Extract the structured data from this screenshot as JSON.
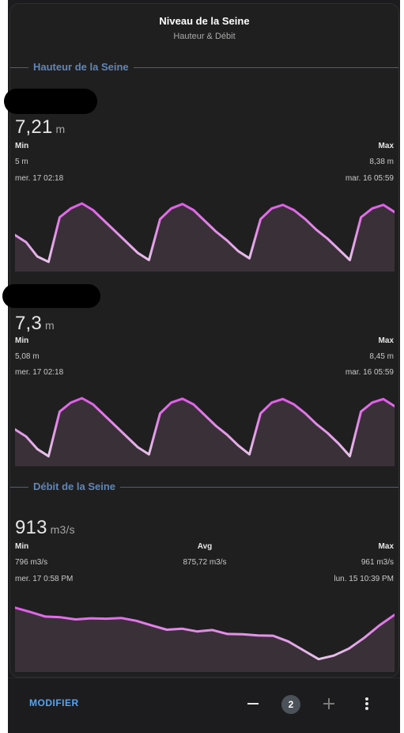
{
  "card": {
    "title": "Niveau de la Seine",
    "subtitle": "Hauteur & Débit"
  },
  "sections": {
    "hauteur_label": "Hauteur de la Seine",
    "debit_label": "Débit de la Seine"
  },
  "sensor1": {
    "value": "7,21",
    "unit": "m",
    "min_label": "Min",
    "max_label": "Max",
    "min_value": "5 m",
    "max_value": "8,38 m",
    "min_time": "mer. 17 02:18",
    "max_time": "mar. 16 05:59"
  },
  "sensor2": {
    "value": "7,3",
    "unit": "m",
    "min_label": "Min",
    "max_label": "Max",
    "min_value": "5,08 m",
    "max_value": "8,45 m",
    "min_time": "mer. 17 02:18",
    "max_time": "mar. 16 05:59"
  },
  "sensor3": {
    "value": "913",
    "unit": "m3/s",
    "min_label": "Min",
    "avg_label": "Avg",
    "max_label": "Max",
    "min_value": "796 m3/s",
    "avg_value": "875,72 m3/s",
    "max_value": "961 m3/s",
    "min_time": "mer. 17 0:58 PM",
    "max_time": "lun. 15 10:39 PM"
  },
  "chart_data": [
    {
      "type": "area",
      "series": [
        {
          "values": [
            6.6,
            6.2,
            5.4,
            5.1,
            7.6,
            8.1,
            8.38,
            8.0,
            7.4,
            6.8,
            6.2,
            5.6,
            5.2,
            7.5,
            8.1,
            8.35,
            8.0,
            7.4,
            6.8,
            6.3,
            5.7,
            5.3,
            7.5,
            8.1,
            8.3,
            8.0,
            7.5,
            6.9,
            6.4,
            5.8,
            5.2,
            7.6,
            8.1,
            8.3,
            7.9
          ]
        }
      ],
      "ylim": [
        5.0,
        8.38
      ]
    },
    {
      "type": "area",
      "series": [
        {
          "values": [
            6.7,
            6.3,
            5.6,
            5.2,
            7.7,
            8.2,
            8.45,
            8.1,
            7.5,
            6.9,
            6.3,
            5.7,
            5.3,
            7.6,
            8.2,
            8.42,
            8.1,
            7.5,
            6.9,
            6.4,
            5.8,
            5.3,
            7.6,
            8.2,
            8.4,
            8.1,
            7.6,
            7.0,
            6.5,
            5.9,
            5.2,
            7.7,
            8.2,
            8.4,
            8.0
          ]
        }
      ],
      "ylim": [
        5.08,
        8.45
      ]
    },
    {
      "type": "area",
      "series": [
        {
          "values": [
            955,
            943,
            930,
            928,
            922,
            925,
            924,
            926,
            918,
            905,
            893,
            896,
            888,
            892,
            881,
            880,
            877,
            876,
            860,
            835,
            810,
            820,
            840,
            870,
            905,
            935
          ]
        }
      ],
      "ylim": [
        796,
        961
      ]
    }
  ],
  "colors": {
    "accent": "#55a4f0",
    "section": "#5f86b8",
    "graph_line_high": "#e05ae8",
    "graph_line_low": "#e6c4e8",
    "graph_fill": "#3a3138"
  },
  "footer": {
    "modify_label": "MODIFIER",
    "badge_count": "2",
    "minus_icon": "minus-icon",
    "plus_icon": "plus-icon",
    "more_icon": "more-vertical-icon"
  }
}
